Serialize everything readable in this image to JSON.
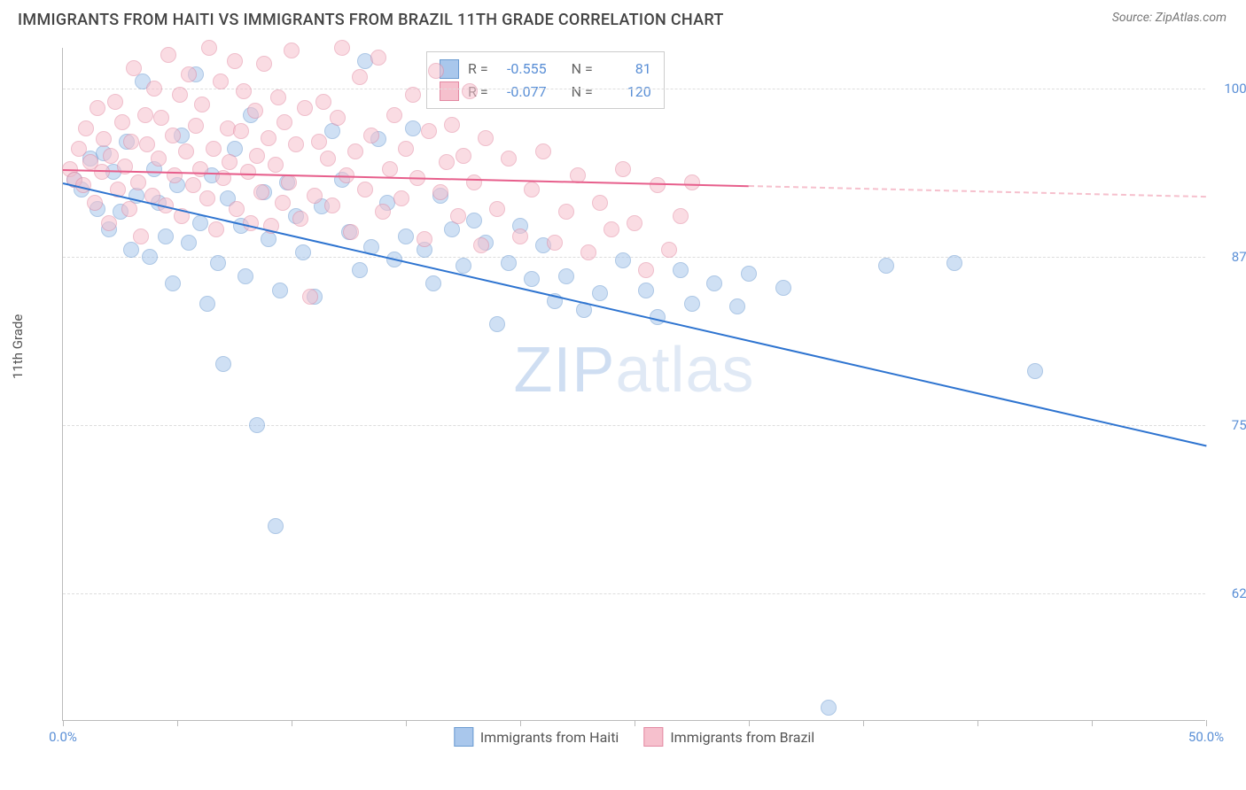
{
  "title": "IMMIGRANTS FROM HAITI VS IMMIGRANTS FROM BRAZIL 11TH GRADE CORRELATION CHART",
  "source_label": "Source: ",
  "source_name": "ZipAtlas.com",
  "y_axis_title": "11th Grade",
  "watermark_bold": "ZIP",
  "watermark_thin": "atlas",
  "chart": {
    "type": "scatter",
    "background_color": "#ffffff",
    "grid_color": "#dddddd",
    "axis_color": "#bbbbbb",
    "label_color": "#5a8fd6",
    "xlim": [
      0,
      50
    ],
    "ylim": [
      53,
      103
    ],
    "xticks": [
      0,
      50
    ],
    "xtick_labels": [
      "0.0%",
      "50.0%"
    ],
    "xtick_minor": [
      5,
      10,
      15,
      20,
      25,
      30,
      35,
      40,
      45
    ],
    "yticks": [
      62.5,
      75.0,
      87.5,
      100.0
    ],
    "ytick_labels": [
      "62.5%",
      "75.0%",
      "87.5%",
      "100.0%"
    ],
    "marker_radius": 9,
    "marker_opacity": 0.55,
    "series": [
      {
        "name": "Immigrants from Haiti",
        "color_fill": "#a9c7ec",
        "color_stroke": "#6b9bd1",
        "trend_color": "#2e74d0",
        "R": "-0.555",
        "N": "81",
        "trend": {
          "x1": 0,
          "y1": 93.0,
          "x2": 50,
          "y2": 73.5,
          "dash_from": 50
        },
        "points": [
          [
            0.5,
            93.2
          ],
          [
            0.8,
            92.5
          ],
          [
            1.2,
            94.8
          ],
          [
            1.5,
            91.0
          ],
          [
            1.8,
            95.2
          ],
          [
            2.0,
            89.5
          ],
          [
            2.2,
            93.8
          ],
          [
            2.5,
            90.8
          ],
          [
            2.8,
            96.0
          ],
          [
            3.0,
            88.0
          ],
          [
            3.2,
            92.0
          ],
          [
            3.5,
            100.5
          ],
          [
            3.8,
            87.5
          ],
          [
            4.0,
            94.0
          ],
          [
            4.2,
            91.5
          ],
          [
            4.5,
            89.0
          ],
          [
            4.8,
            85.5
          ],
          [
            5.0,
            92.8
          ],
          [
            5.2,
            96.5
          ],
          [
            5.5,
            88.5
          ],
          [
            5.8,
            101.0
          ],
          [
            6.0,
            90.0
          ],
          [
            6.3,
            84.0
          ],
          [
            6.5,
            93.5
          ],
          [
            6.8,
            87.0
          ],
          [
            7.0,
            79.5
          ],
          [
            7.2,
            91.8
          ],
          [
            7.5,
            95.5
          ],
          [
            7.8,
            89.8
          ],
          [
            8.0,
            86.0
          ],
          [
            8.2,
            98.0
          ],
          [
            8.5,
            75.0
          ],
          [
            8.8,
            92.3
          ],
          [
            9.0,
            88.8
          ],
          [
            9.3,
            67.5
          ],
          [
            9.5,
            85.0
          ],
          [
            9.8,
            93.0
          ],
          [
            10.2,
            90.5
          ],
          [
            10.5,
            87.8
          ],
          [
            11.0,
            84.5
          ],
          [
            11.3,
            91.2
          ],
          [
            11.8,
            96.8
          ],
          [
            12.2,
            93.2
          ],
          [
            12.5,
            89.3
          ],
          [
            13.0,
            86.5
          ],
          [
            13.2,
            102.0
          ],
          [
            13.5,
            88.2
          ],
          [
            13.8,
            96.2
          ],
          [
            14.2,
            91.5
          ],
          [
            14.5,
            87.3
          ],
          [
            15.0,
            89.0
          ],
          [
            15.3,
            97.0
          ],
          [
            15.8,
            88.0
          ],
          [
            16.2,
            85.5
          ],
          [
            16.5,
            92.0
          ],
          [
            17.0,
            89.5
          ],
          [
            17.5,
            86.8
          ],
          [
            18.0,
            90.2
          ],
          [
            18.5,
            88.5
          ],
          [
            19.0,
            82.5
          ],
          [
            19.5,
            87.0
          ],
          [
            20.0,
            89.8
          ],
          [
            20.5,
            85.8
          ],
          [
            21.0,
            88.3
          ],
          [
            21.5,
            84.2
          ],
          [
            22.0,
            86.0
          ],
          [
            22.8,
            83.5
          ],
          [
            23.5,
            84.8
          ],
          [
            24.5,
            87.2
          ],
          [
            25.5,
            85.0
          ],
          [
            26.0,
            83.0
          ],
          [
            27.0,
            86.5
          ],
          [
            27.5,
            84.0
          ],
          [
            28.5,
            85.5
          ],
          [
            29.5,
            83.8
          ],
          [
            30.0,
            86.2
          ],
          [
            31.5,
            85.2
          ],
          [
            33.5,
            54.0
          ],
          [
            36.0,
            86.8
          ],
          [
            39.0,
            87.0
          ],
          [
            42.5,
            79.0
          ]
        ]
      },
      {
        "name": "Immigrants from Brazil",
        "color_fill": "#f6c0cd",
        "color_stroke": "#e389a2",
        "trend_color": "#e75f8c",
        "R": "-0.077",
        "N": "120",
        "trend": {
          "x1": 0,
          "y1": 94.0,
          "x2": 30,
          "y2": 92.8,
          "dash_from": 30
        },
        "points": [
          [
            0.3,
            94.0
          ],
          [
            0.5,
            93.2
          ],
          [
            0.7,
            95.5
          ],
          [
            0.9,
            92.8
          ],
          [
            1.0,
            97.0
          ],
          [
            1.2,
            94.5
          ],
          [
            1.4,
            91.5
          ],
          [
            1.5,
            98.5
          ],
          [
            1.7,
            93.8
          ],
          [
            1.8,
            96.2
          ],
          [
            2.0,
            90.0
          ],
          [
            2.1,
            95.0
          ],
          [
            2.3,
            99.0
          ],
          [
            2.4,
            92.5
          ],
          [
            2.6,
            97.5
          ],
          [
            2.7,
            94.2
          ],
          [
            2.9,
            91.0
          ],
          [
            3.0,
            96.0
          ],
          [
            3.1,
            101.5
          ],
          [
            3.3,
            93.0
          ],
          [
            3.4,
            89.0
          ],
          [
            3.6,
            98.0
          ],
          [
            3.7,
            95.8
          ],
          [
            3.9,
            92.0
          ],
          [
            4.0,
            100.0
          ],
          [
            4.2,
            94.8
          ],
          [
            4.3,
            97.8
          ],
          [
            4.5,
            91.3
          ],
          [
            4.6,
            102.5
          ],
          [
            4.8,
            96.5
          ],
          [
            4.9,
            93.5
          ],
          [
            5.1,
            99.5
          ],
          [
            5.2,
            90.5
          ],
          [
            5.4,
            95.3
          ],
          [
            5.5,
            101.0
          ],
          [
            5.7,
            92.8
          ],
          [
            5.8,
            97.2
          ],
          [
            6.0,
            94.0
          ],
          [
            6.1,
            98.8
          ],
          [
            6.3,
            91.8
          ],
          [
            6.4,
            103.0
          ],
          [
            6.6,
            95.5
          ],
          [
            6.7,
            89.5
          ],
          [
            6.9,
            100.5
          ],
          [
            7.0,
            93.3
          ],
          [
            7.2,
            97.0
          ],
          [
            7.3,
            94.5
          ],
          [
            7.5,
            102.0
          ],
          [
            7.6,
            91.0
          ],
          [
            7.8,
            96.8
          ],
          [
            7.9,
            99.8
          ],
          [
            8.1,
            93.8
          ],
          [
            8.2,
            90.0
          ],
          [
            8.4,
            98.3
          ],
          [
            8.5,
            95.0
          ],
          [
            8.7,
            92.3
          ],
          [
            8.8,
            101.8
          ],
          [
            9.0,
            96.3
          ],
          [
            9.1,
            89.8
          ],
          [
            9.3,
            94.3
          ],
          [
            9.4,
            99.3
          ],
          [
            9.6,
            91.5
          ],
          [
            9.7,
            97.5
          ],
          [
            9.9,
            93.0
          ],
          [
            10.0,
            102.8
          ],
          [
            10.2,
            95.8
          ],
          [
            10.4,
            90.3
          ],
          [
            10.6,
            98.5
          ],
          [
            10.8,
            84.5
          ],
          [
            11.0,
            92.0
          ],
          [
            11.2,
            96.0
          ],
          [
            11.4,
            99.0
          ],
          [
            11.6,
            94.8
          ],
          [
            11.8,
            91.3
          ],
          [
            12.0,
            97.8
          ],
          [
            12.2,
            103.0
          ],
          [
            12.4,
            93.5
          ],
          [
            12.6,
            89.3
          ],
          [
            12.8,
            95.3
          ],
          [
            13.0,
            100.8
          ],
          [
            13.2,
            92.5
          ],
          [
            13.5,
            96.5
          ],
          [
            13.8,
            102.3
          ],
          [
            14.0,
            90.8
          ],
          [
            14.3,
            94.0
          ],
          [
            14.5,
            98.0
          ],
          [
            14.8,
            91.8
          ],
          [
            15.0,
            95.5
          ],
          [
            15.3,
            99.5
          ],
          [
            15.5,
            93.3
          ],
          [
            15.8,
            88.8
          ],
          [
            16.0,
            96.8
          ],
          [
            16.3,
            101.3
          ],
          [
            16.5,
            92.3
          ],
          [
            16.8,
            94.5
          ],
          [
            17.0,
            97.3
          ],
          [
            17.3,
            90.5
          ],
          [
            17.5,
            95.0
          ],
          [
            17.8,
            99.8
          ],
          [
            18.0,
            93.0
          ],
          [
            18.3,
            88.3
          ],
          [
            18.5,
            96.3
          ],
          [
            19.0,
            91.0
          ],
          [
            19.5,
            94.8
          ],
          [
            20.0,
            89.0
          ],
          [
            20.5,
            92.5
          ],
          [
            21.0,
            95.3
          ],
          [
            21.5,
            88.5
          ],
          [
            22.0,
            90.8
          ],
          [
            22.5,
            93.5
          ],
          [
            23.0,
            87.8
          ],
          [
            23.5,
            91.5
          ],
          [
            24.0,
            89.5
          ],
          [
            24.5,
            94.0
          ],
          [
            25.0,
            90.0
          ],
          [
            25.5,
            86.5
          ],
          [
            26.0,
            92.8
          ],
          [
            26.5,
            88.0
          ],
          [
            27.0,
            90.5
          ],
          [
            27.5,
            93.0
          ]
        ]
      }
    ]
  },
  "legend": {
    "series1_label": "Immigrants from Haiti",
    "series2_label": "Immigrants from Brazil"
  },
  "stats_box": {
    "r_label": "R =",
    "n_label": "N ="
  }
}
